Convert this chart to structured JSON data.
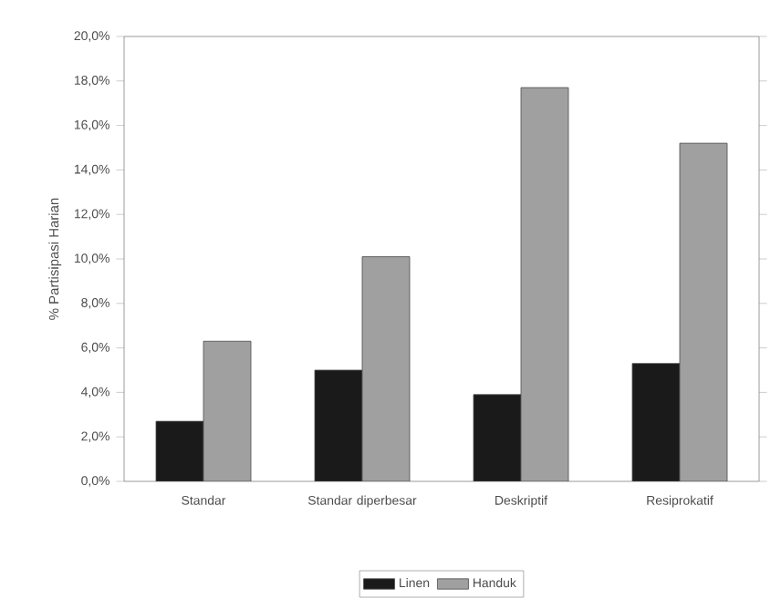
{
  "chart_data": {
    "type": "bar",
    "ylabel": "% Partisipasi Harian",
    "categories": [
      "Standar",
      "Standar diperbesar",
      "Deskriptif",
      "Resiprokatif"
    ],
    "series": [
      {
        "name": "Linen",
        "color": "#1a1a1a",
        "values": [
          2.7,
          5.0,
          3.9,
          5.3
        ]
      },
      {
        "name": "Handuk",
        "color": "#a0a0a0",
        "values": [
          6.3,
          10.1,
          17.7,
          15.2
        ]
      }
    ],
    "ylim": [
      0,
      20
    ],
    "yticks": [
      {
        "value": 0,
        "label": "0,0%"
      },
      {
        "value": 2,
        "label": "2,0%"
      },
      {
        "value": 4,
        "label": "4,0%"
      },
      {
        "value": 6,
        "label": "6,0%"
      },
      {
        "value": 8,
        "label": "8,0%"
      },
      {
        "value": 10,
        "label": "10,0%"
      },
      {
        "value": 12,
        "label": "12,0%"
      },
      {
        "value": 14,
        "label": "14,0%"
      },
      {
        "value": 16,
        "label": "16,0%"
      },
      {
        "value": 18,
        "label": "18,0%"
      },
      {
        "value": 20,
        "label": "20,0%"
      }
    ],
    "legend": "bottom",
    "grid": false
  }
}
